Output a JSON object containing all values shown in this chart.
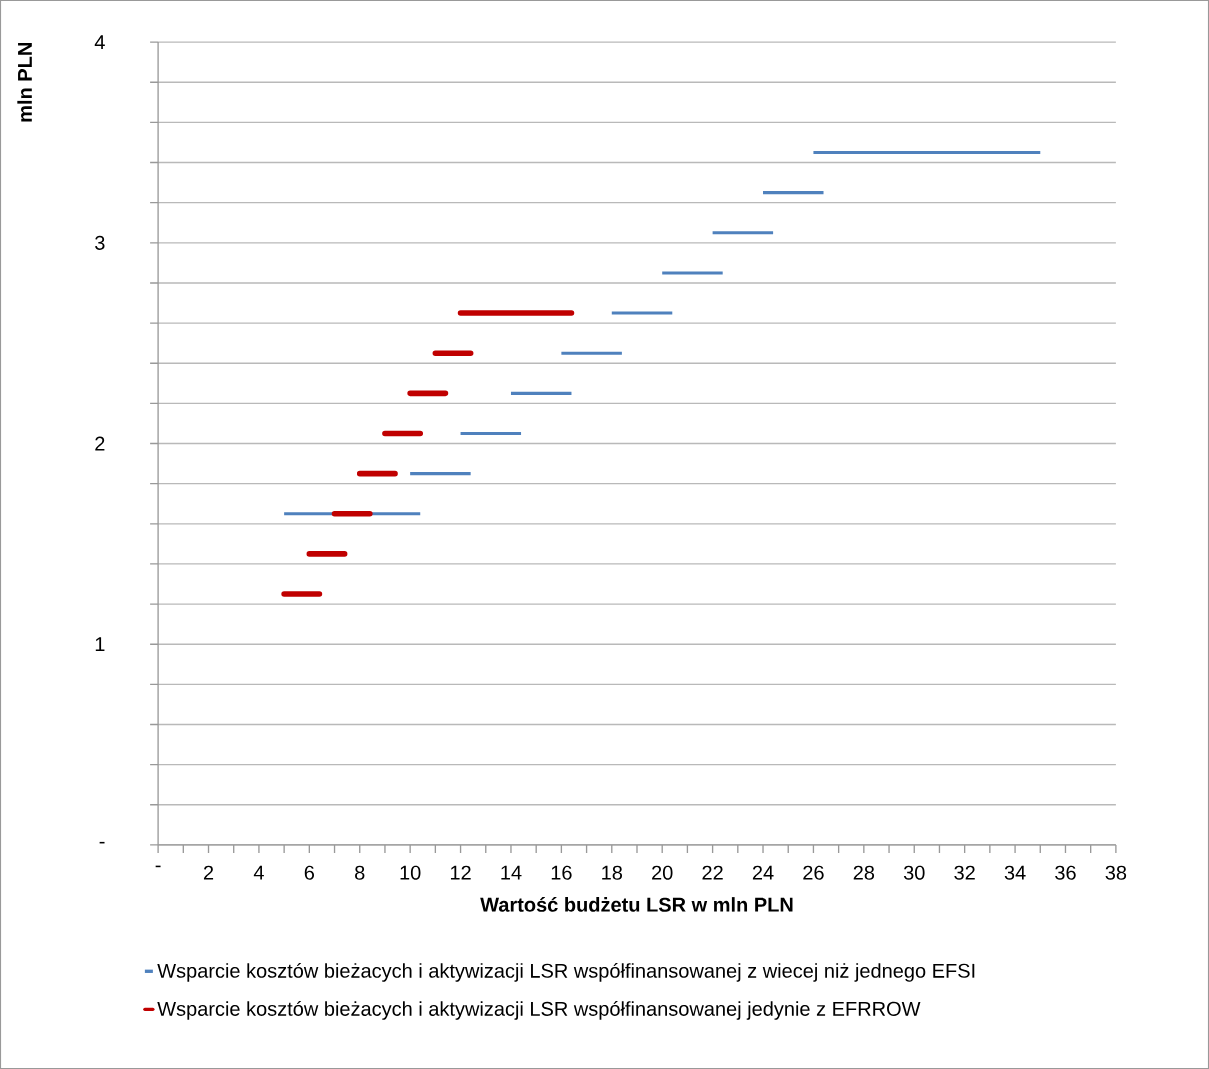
{
  "chart_data": {
    "type": "line",
    "xlabel": "Wartość budżetu LSR w mln PLN",
    "ylabel": "mln PLN",
    "xlim": [
      0,
      38
    ],
    "ylim": [
      0,
      4
    ],
    "xticks": [
      {
        "value": 0,
        "label": "-"
      },
      {
        "value": 1,
        "label": null
      },
      2,
      {
        "value": 3,
        "label": null
      },
      4,
      {
        "value": 5,
        "label": null
      },
      6,
      {
        "value": 7,
        "label": null
      },
      8,
      {
        "value": 9,
        "label": null
      },
      10,
      {
        "value": 11,
        "label": null
      },
      12,
      {
        "value": 13,
        "label": null
      },
      14,
      {
        "value": 15,
        "label": null
      },
      16,
      {
        "value": 17,
        "label": null
      },
      18,
      {
        "value": 19,
        "label": null
      },
      20,
      {
        "value": 21,
        "label": null
      },
      22,
      {
        "value": 23,
        "label": null
      },
      24,
      {
        "value": 25,
        "label": null
      },
      26,
      {
        "value": 27,
        "label": null
      },
      28,
      {
        "value": 29,
        "label": null
      },
      30,
      {
        "value": 31,
        "label": null
      },
      32,
      {
        "value": 33,
        "label": null
      },
      34,
      {
        "value": 35,
        "label": null
      },
      36,
      {
        "value": 37,
        "label": null
      },
      38
    ],
    "yticks": [
      {
        "value": 0,
        "label": "-"
      },
      {
        "value": 0.2,
        "label": null
      },
      {
        "value": 0.4,
        "label": null
      },
      {
        "value": 0.6,
        "label": null
      },
      {
        "value": 0.8,
        "label": null
      },
      1,
      {
        "value": 1.2,
        "label": null
      },
      {
        "value": 1.4,
        "label": null
      },
      {
        "value": 1.6,
        "label": null
      },
      {
        "value": 1.8,
        "label": null
      },
      2,
      {
        "value": 2.2,
        "label": null
      },
      {
        "value": 2.4,
        "label": null
      },
      {
        "value": 2.6,
        "label": null
      },
      {
        "value": 2.8,
        "label": null
      },
      3,
      {
        "value": 3.2,
        "label": null
      },
      {
        "value": 3.4,
        "label": null
      },
      {
        "value": 3.6,
        "label": null
      },
      {
        "value": 3.8,
        "label": null
      },
      4
    ],
    "grid": "y",
    "legend": "bottom",
    "marker": "none",
    "line_style": "solid",
    "series": [
      {
        "name": "Wsparcie kosztów bieżacych i aktywizacji LSR współfinansowanej z wiecej niż jednego EFSI",
        "color": "#4f81bd",
        "x": [
          5,
          10.4,
          null,
          10,
          12.4,
          null,
          12,
          14.4,
          null,
          14,
          16.4,
          null,
          16,
          18.4,
          null,
          18,
          20.4,
          null,
          20,
          22.4,
          null,
          22,
          24.4,
          null,
          24,
          26.4,
          null,
          26,
          35
        ],
        "values": [
          1.65,
          1.65,
          null,
          1.85,
          1.85,
          null,
          2.05,
          2.05,
          null,
          2.25,
          2.25,
          null,
          2.45,
          2.45,
          null,
          2.65,
          2.65,
          null,
          2.85,
          2.85,
          null,
          3.05,
          3.05,
          null,
          3.25,
          3.25,
          null,
          3.45,
          3.45
        ]
      },
      {
        "name": "Wsparcie kosztów bieżacych i aktywizacji LSR współfinansowanej jedynie z EFRROW",
        "color": "#c00000",
        "x": [
          5,
          6.4,
          null,
          6,
          7.4,
          null,
          7,
          8.4,
          null,
          8,
          9.4,
          null,
          9,
          10.4,
          null,
          10,
          11.4,
          null,
          11,
          12.4,
          null,
          12,
          16.4
        ],
        "values": [
          1.25,
          1.25,
          null,
          1.45,
          1.45,
          null,
          1.65,
          1.65,
          null,
          1.85,
          1.85,
          null,
          2.05,
          2.05,
          null,
          2.25,
          2.25,
          null,
          2.45,
          2.45,
          null,
          2.65,
          2.65
        ]
      }
    ]
  }
}
